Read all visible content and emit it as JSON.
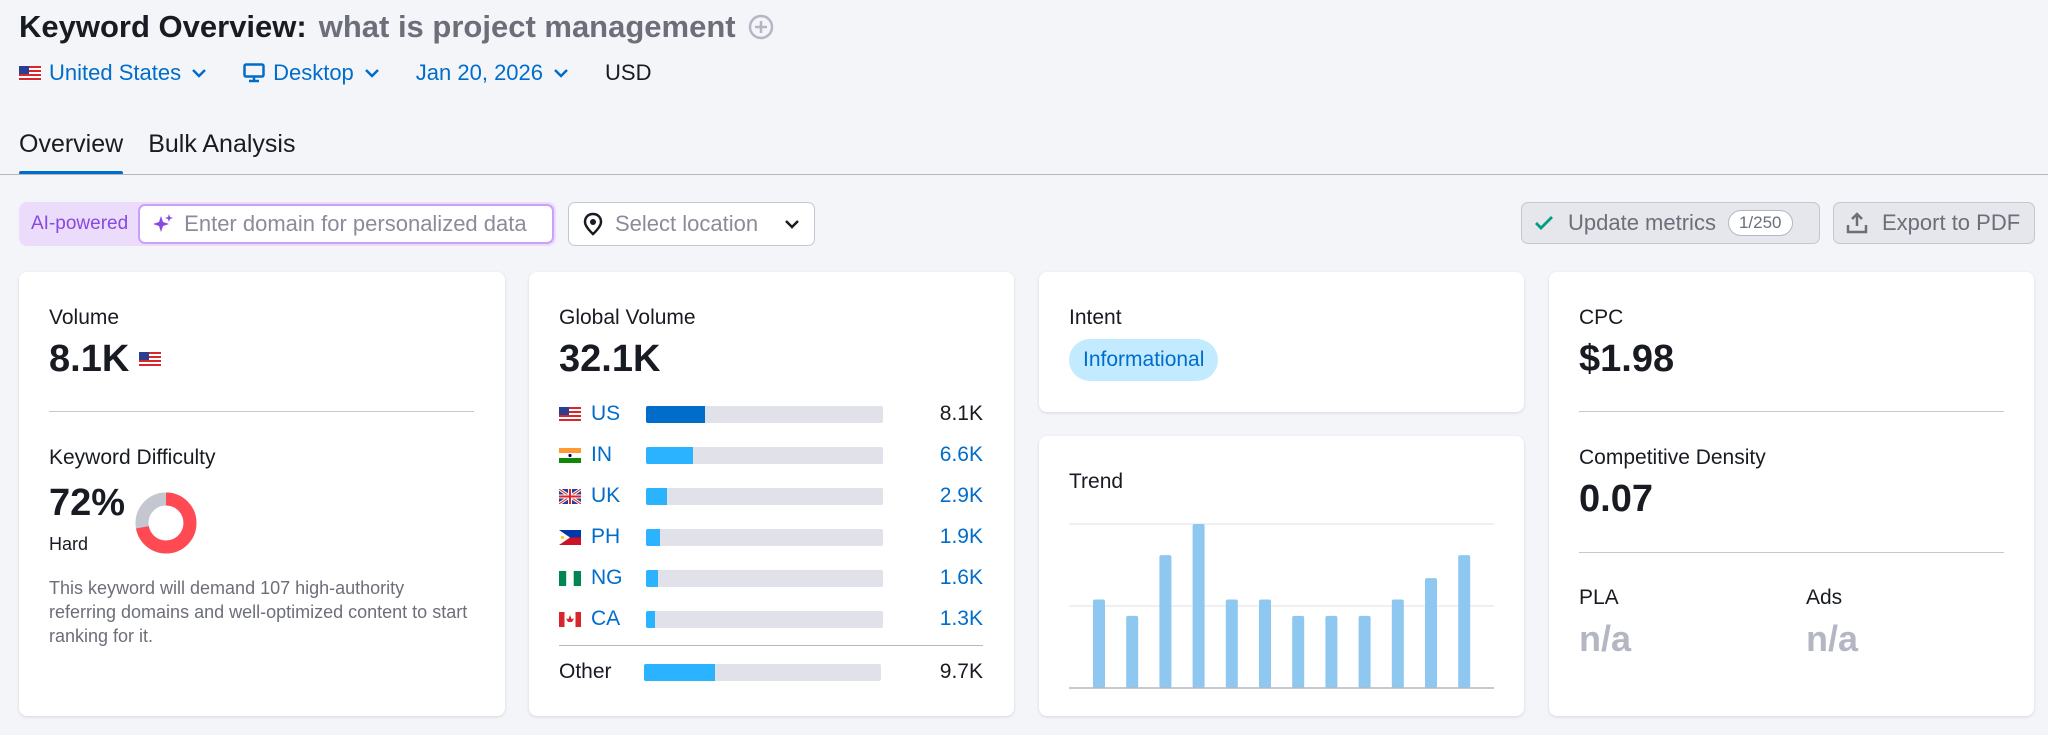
{
  "header": {
    "title": "Keyword Overview:",
    "keyword": "what is project management"
  },
  "filters": {
    "country": "United States",
    "device": "Desktop",
    "date": "Jan 20, 2026",
    "currency": "USD"
  },
  "tabs": [
    {
      "label": "Overview",
      "active": true
    },
    {
      "label": "Bulk Analysis",
      "active": false
    }
  ],
  "toolbar": {
    "ai_label": "AI-powered",
    "domain_placeholder": "Enter domain for personalized data",
    "location_placeholder": "Select location",
    "update_label": "Update metrics",
    "update_count": "1/250",
    "export_label": "Export to PDF"
  },
  "volume": {
    "label": "Volume",
    "value": "8.1K"
  },
  "difficulty": {
    "label": "Keyword Difficulty",
    "value": "72%",
    "percent": 72,
    "level": "Hard",
    "description": "This keyword will demand 107 high-authority referring domains and well-optimized content to start ranking for it."
  },
  "global_volume": {
    "label": "Global Volume",
    "value": "32.1K",
    "countries": [
      {
        "code": "US",
        "value": "8.1K",
        "share": 0.25,
        "color": "#006dca"
      },
      {
        "code": "IN",
        "value": "6.6K",
        "share": 0.2,
        "color": "#2bb3ff"
      },
      {
        "code": "UK",
        "value": "2.9K",
        "share": 0.09,
        "color": "#2bb3ff"
      },
      {
        "code": "PH",
        "value": "1.9K",
        "share": 0.06,
        "color": "#2bb3ff"
      },
      {
        "code": "NG",
        "value": "1.6K",
        "share": 0.05,
        "color": "#2bb3ff"
      },
      {
        "code": "CA",
        "value": "1.3K",
        "share": 0.04,
        "color": "#2bb3ff"
      }
    ],
    "other": {
      "label": "Other",
      "value": "9.7K",
      "share": 0.3,
      "color": "#2bb3ff"
    }
  },
  "intent": {
    "label": "Intent",
    "value": "Informational"
  },
  "trend": {
    "label": "Trend",
    "chart_data": {
      "type": "bar",
      "values": [
        0.54,
        0.44,
        0.81,
        1.0,
        0.54,
        0.54,
        0.44,
        0.44,
        0.44,
        0.54,
        0.67,
        0.81
      ],
      "ylim": [
        0,
        1
      ],
      "grid": true,
      "color": "#8ec7f0"
    }
  },
  "cpc": {
    "label": "CPC",
    "value": "$1.98"
  },
  "competitive_density": {
    "label": "Competitive Density",
    "value": "0.07"
  },
  "pla": {
    "label": "PLA",
    "value": "n/a"
  },
  "ads": {
    "label": "Ads",
    "value": "n/a"
  }
}
